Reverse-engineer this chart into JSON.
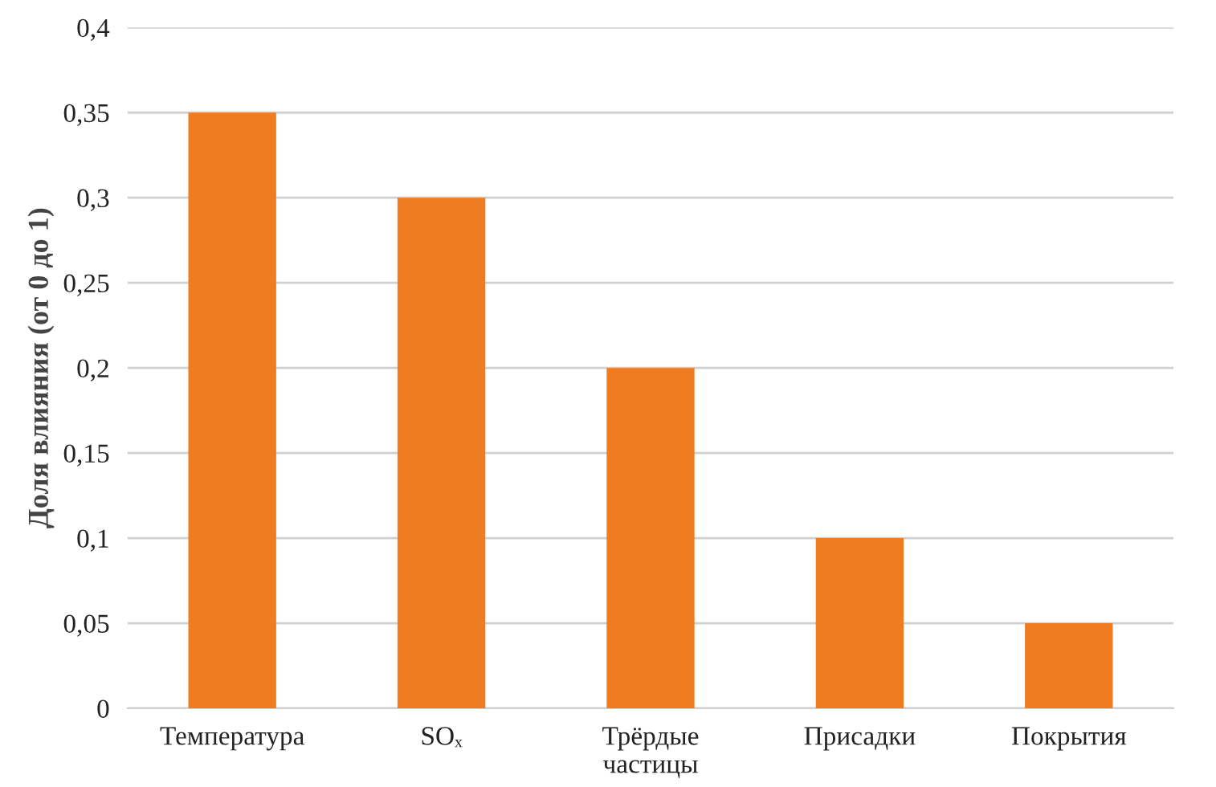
{
  "chart_data": {
    "type": "bar",
    "ylabel": "Доля влияния (от 0 до 1)",
    "categories": [
      "Температура",
      "SOₓ",
      "Трёрдые\nчастицы",
      "Присадки",
      "Покрытия"
    ],
    "values": [
      0.35,
      0.3,
      0.2,
      0.1,
      0.05
    ],
    "color": "#f07c22",
    "ylim": [
      0,
      0.4
    ],
    "yticks": [
      {
        "value": 0,
        "label": "0"
      },
      {
        "value": 0.05,
        "label": "0,05"
      },
      {
        "value": 0.1,
        "label": "0,1"
      },
      {
        "value": 0.15,
        "label": "0,15"
      },
      {
        "value": 0.2,
        "label": "0,2"
      },
      {
        "value": 0.25,
        "label": "0,25"
      },
      {
        "value": 0.3,
        "label": "0,3"
      },
      {
        "value": 0.35,
        "label": "0,35"
      },
      {
        "value": 0.4,
        "label": "0,4"
      }
    ],
    "grid": "y"
  }
}
